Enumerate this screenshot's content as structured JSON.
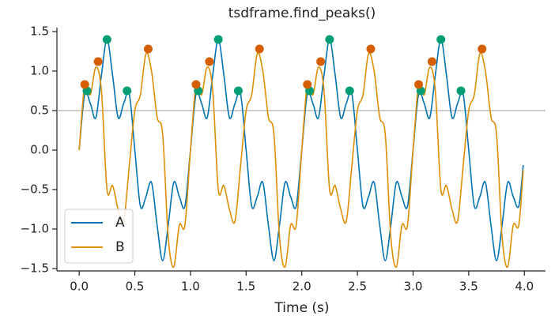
{
  "chart_data": {
    "type": "line",
    "title": "tsdframe.find_peaks()",
    "x_label": "Time (s)",
    "x": [
      0,
      0.05,
      0.1,
      0.15,
      0.2,
      0.25,
      0.3,
      0.35,
      0.4,
      0.45,
      0.5,
      0.55,
      0.6,
      0.65,
      0.7,
      0.75,
      0.8,
      0.85,
      0.9,
      0.95,
      1,
      1.05,
      1.1,
      1.15,
      1.2,
      1.25,
      1.3,
      1.35,
      1.4,
      1.45,
      1.5,
      1.55,
      1.6,
      1.65,
      1.7,
      1.75,
      1.8,
      1.85,
      1.9,
      1.95,
      2,
      2.05,
      2.1,
      2.15,
      2.2,
      2.25,
      2.3,
      2.35,
      2.4,
      2.45,
      2.5,
      2.55,
      2.6,
      2.65,
      2.7,
      2.75,
      2.8,
      2.85,
      2.9,
      2.95,
      3,
      3.05,
      3.1,
      3.15,
      3.2,
      3.25,
      3.3,
      3.35,
      3.4,
      3.45,
      3.5,
      3.55,
      3.6,
      3.65,
      3.7,
      3.75,
      3.8,
      3.85,
      3.9,
      3.95,
      3.99
    ],
    "series": [
      {
        "name": "A",
        "color": "#0173b2",
        "values": [
          0,
          0.71,
          0.59,
          0.41,
          0.95,
          1.4,
          0.95,
          0.41,
          0.59,
          0.71,
          0,
          -0.71,
          -0.59,
          -0.41,
          -0.95,
          -1.4,
          -0.95,
          -0.41,
          -0.59,
          -0.71,
          0,
          0.71,
          0.59,
          0.41,
          0.95,
          1.4,
          0.95,
          0.41,
          0.59,
          0.71,
          0,
          -0.71,
          -0.59,
          -0.41,
          -0.95,
          -1.4,
          -0.95,
          -0.41,
          -0.59,
          -0.71,
          0,
          0.71,
          0.59,
          0.41,
          0.95,
          1.4,
          0.95,
          0.41,
          0.59,
          0.71,
          0,
          -0.71,
          -0.59,
          -0.41,
          -0.95,
          -1.4,
          -0.95,
          -0.41,
          -0.59,
          -0.71,
          0,
          0.71,
          0.59,
          0.41,
          0.95,
          1.4,
          0.95,
          0.41,
          0.59,
          0.71,
          0,
          -0.71,
          -0.59,
          -0.41,
          -0.95,
          -1.4,
          -0.95,
          -0.41,
          -0.59,
          -0.71,
          -0.19
        ],
        "peaks": {
          "color": "#029e73",
          "x": [
            0.07,
            0.25,
            0.43,
            1.07,
            1.25,
            1.43,
            2.07,
            2.25,
            2.43,
            3.07,
            3.25,
            3.43
          ],
          "values": [
            0.75,
            1.4,
            0.75,
            0.75,
            1.4,
            0.75,
            0.75,
            1.4,
            0.75,
            0.75,
            1.4,
            0.75
          ]
        }
      },
      {
        "name": "B",
        "color": "#de8f05",
        "values": [
          0,
          0.83,
          0.7,
          1.05,
          0.75,
          -0.5,
          -0.45,
          -0.75,
          -0.9,
          -0.2,
          0.5,
          0.7,
          1.22,
          1.0,
          0.42,
          0.2,
          -1.1,
          -1.48,
          -0.95,
          -0.95,
          0,
          0.83,
          0.7,
          1.05,
          0.75,
          -0.5,
          -0.45,
          -0.75,
          -0.9,
          -0.2,
          0.5,
          0.7,
          1.22,
          1.0,
          0.42,
          0.2,
          -1.1,
          -1.48,
          -0.95,
          -0.95,
          0,
          0.83,
          0.7,
          1.05,
          0.75,
          -0.5,
          -0.45,
          -0.75,
          -0.9,
          -0.2,
          0.5,
          0.7,
          1.22,
          1.0,
          0.42,
          0.2,
          -1.1,
          -1.48,
          -0.95,
          -0.95,
          0,
          0.83,
          0.7,
          1.05,
          0.75,
          -0.5,
          -0.45,
          -0.75,
          -0.9,
          -0.2,
          0.5,
          0.7,
          1.22,
          1.0,
          0.42,
          0.2,
          -1.1,
          -1.48,
          -0.95,
          -0.95,
          -0.25
        ],
        "peaks": {
          "color": "#d55e00",
          "x": [
            0.05,
            0.17,
            0.62,
            1.05,
            1.17,
            1.62,
            2.05,
            2.17,
            2.62,
            3.05,
            3.17,
            3.62
          ],
          "values": [
            0.83,
            1.12,
            1.28,
            0.83,
            1.12,
            1.28,
            0.83,
            1.12,
            1.28,
            0.83,
            1.12,
            1.28
          ]
        }
      }
    ],
    "hline": {
      "value": 0.5,
      "color": "#999999"
    },
    "xlim": [
      -0.2,
      4.19
    ],
    "ylim": [
      -1.53,
      1.55
    ],
    "xticks": [
      {
        "value": 0,
        "label": "0.0"
      },
      0.5,
      {
        "value": 1,
        "label": "1.0"
      },
      1.5,
      {
        "value": 2,
        "label": "2.0"
      },
      2.5,
      {
        "value": 3,
        "label": "3.0"
      },
      3.5,
      {
        "value": 4,
        "label": "4.0"
      }
    ],
    "yticks": [
      {
        "value": -1.5,
        "label": "−1.5"
      },
      {
        "value": -1,
        "label": "−1.0"
      },
      {
        "value": -0.5,
        "label": "−0.5"
      },
      {
        "value": 0,
        "label": "0.0"
      },
      0.5,
      {
        "value": 1,
        "label": "1.0"
      },
      1.5
    ],
    "legend": "lower left",
    "grid": false
  }
}
